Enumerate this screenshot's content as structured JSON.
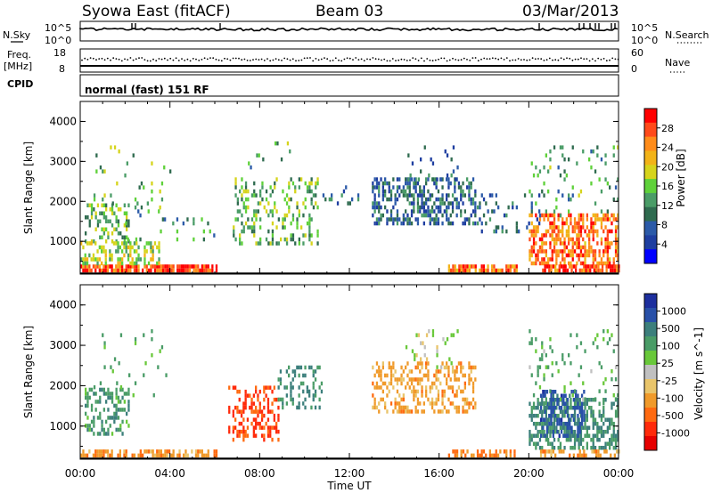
{
  "header": {
    "station": "Syowa East (fitACF)",
    "beam": "Beam 03",
    "date": "03/Mar/2013"
  },
  "panels": {
    "nsky": {
      "label": "N.Sky",
      "tick_top": "10^5",
      "tick_bottom": "10^0"
    },
    "nsearch": {
      "label": "N.Search",
      "tick_top": "10^5",
      "tick_bottom": "10^0"
    },
    "freq": {
      "label_top": "Freq.",
      "label_unit": "[MHz]",
      "tick_top": "18",
      "tick_bottom": "8"
    },
    "nave": {
      "label": "Nave",
      "tick_top": "60",
      "tick_bottom": "0"
    },
    "cpid": {
      "label": "CPID",
      "value": "normal (fast) 151 RF"
    }
  },
  "colorbars": {
    "power": {
      "label": "Power [dB]",
      "ticks": [
        "28",
        "24",
        "20",
        "16",
        "12",
        "8",
        "4"
      ],
      "colors": [
        "#ff0000",
        "#ff4a1a",
        "#ff8c1a",
        "#f2b318",
        "#d6d41c",
        "#5fd13a",
        "#4a9c67",
        "#2f6b4f",
        "#2b5aa8",
        "#1e3ea0",
        "#0000ff"
      ]
    },
    "velocity": {
      "label": "Velocity [m s^-1]",
      "ticks": [
        "1000",
        "500",
        "100",
        "25",
        "-25",
        "-100",
        "-500",
        "-1000"
      ],
      "colors": [
        "#1d2f9e",
        "#2850a8",
        "#3c7f7c",
        "#4a9c67",
        "#69c83a",
        "#c0c0c0",
        "#e9c56b",
        "#f09a2a",
        "#ff6a10",
        "#ff2a0a",
        "#e60000"
      ]
    }
  },
  "chart_data": [
    {
      "type": "heatmap",
      "title": "Power",
      "ylabel": "Slant Range [km]",
      "ylim": [
        180,
        4500
      ],
      "yticks": [
        "4000",
        "3000",
        "2000",
        "1000"
      ],
      "xlim": [
        0,
        24
      ],
      "colorbar": "Power [dB]",
      "clim": [
        0,
        30
      ],
      "cells": [
        {
          "t": [
            0.2,
            2.2
          ],
          "r": [
            1000,
            1950
          ],
          "v": 14,
          "d": 0.35
        },
        {
          "t": [
            0.0,
            6.1
          ],
          "r": [
            230,
            420
          ],
          "v": 26,
          "d": 0.75
        },
        {
          "t": [
            0.0,
            3.5
          ],
          "r": [
            420,
            1000
          ],
          "v": 16,
          "d": 0.45
        },
        {
          "t": [
            0.5,
            4.0
          ],
          "r": [
            1800,
            3400
          ],
          "v": 14,
          "d": 0.06
        },
        {
          "t": [
            2.0,
            6.0
          ],
          "r": [
            1000,
            1800
          ],
          "v": 12,
          "d": 0.06
        },
        {
          "t": [
            6.8,
            10.6
          ],
          "r": [
            900,
            2600
          ],
          "v": 14,
          "d": 0.3
        },
        {
          "t": [
            7.2,
            9.4
          ],
          "r": [
            2800,
            3500
          ],
          "v": 12,
          "d": 0.05
        },
        {
          "t": [
            10.8,
            12.4
          ],
          "r": [
            1900,
            2400
          ],
          "v": 8,
          "d": 0.18
        },
        {
          "t": [
            13.0,
            17.6
          ],
          "r": [
            1400,
            2600
          ],
          "v": 8,
          "d": 0.45
        },
        {
          "t": [
            14.5,
            16.8
          ],
          "r": [
            2500,
            3400
          ],
          "v": 8,
          "d": 0.12
        },
        {
          "t": [
            16.4,
            19.5
          ],
          "r": [
            230,
            420
          ],
          "v": 24,
          "d": 0.65
        },
        {
          "t": [
            17.5,
            20.5
          ],
          "r": [
            1200,
            2200
          ],
          "v": 8,
          "d": 0.15
        },
        {
          "t": [
            20.0,
            24.0
          ],
          "r": [
            420,
            1700
          ],
          "v": 24,
          "d": 0.6
        },
        {
          "t": [
            20.0,
            24.0
          ],
          "r": [
            1600,
            3400
          ],
          "v": 12,
          "d": 0.1
        },
        {
          "t": [
            20.5,
            24.0
          ],
          "r": [
            230,
            420
          ],
          "v": 26,
          "d": 0.7
        }
      ]
    },
    {
      "type": "heatmap",
      "title": "Velocity",
      "ylabel": "Slant Range [km]",
      "ylim": [
        180,
        4500
      ],
      "yticks": [
        "4000",
        "3000",
        "2000",
        "1000"
      ],
      "xlim": [
        0,
        24
      ],
      "xlabel": "Time UT",
      "xticks": [
        "00:00",
        "04:00",
        "08:00",
        "12:00",
        "16:00",
        "20:00",
        "00:00"
      ],
      "colorbar": "Velocity [m s^-1]",
      "clim": [
        -1000,
        1000
      ],
      "cells": [
        {
          "t": [
            0.2,
            2.2
          ],
          "r": [
            800,
            1950
          ],
          "v": 200,
          "d": 0.4
        },
        {
          "t": [
            0.0,
            6.1
          ],
          "r": [
            230,
            420
          ],
          "v": -80,
          "d": 0.55
        },
        {
          "t": [
            0.5,
            4.0
          ],
          "r": [
            1800,
            3400
          ],
          "v": 150,
          "d": 0.06
        },
        {
          "t": [
            6.6,
            8.8
          ],
          "r": [
            700,
            2000
          ],
          "v": -300,
          "d": 0.35
        },
        {
          "t": [
            8.8,
            10.8
          ],
          "r": [
            1500,
            2500
          ],
          "v": 300,
          "d": 0.25
        },
        {
          "t": [
            13.0,
            17.6
          ],
          "r": [
            1400,
            2600
          ],
          "v": -60,
          "d": 0.35
        },
        {
          "t": [
            14.5,
            16.8
          ],
          "r": [
            2500,
            3400
          ],
          "v": 40,
          "d": 0.12
        },
        {
          "t": [
            16.4,
            19.5
          ],
          "r": [
            230,
            420
          ],
          "v": -120,
          "d": 0.55
        },
        {
          "t": [
            20.0,
            24.0
          ],
          "r": [
            420,
            1700
          ],
          "v": 250,
          "d": 0.55
        },
        {
          "t": [
            20.5,
            22.5
          ],
          "r": [
            800,
            1900
          ],
          "v": 700,
          "d": 0.5
        },
        {
          "t": [
            20.0,
            24.0
          ],
          "r": [
            1600,
            3400
          ],
          "v": 120,
          "d": 0.1
        },
        {
          "t": [
            20.5,
            24.0
          ],
          "r": [
            230,
            420
          ],
          "v": -60,
          "d": 0.5
        }
      ]
    }
  ]
}
